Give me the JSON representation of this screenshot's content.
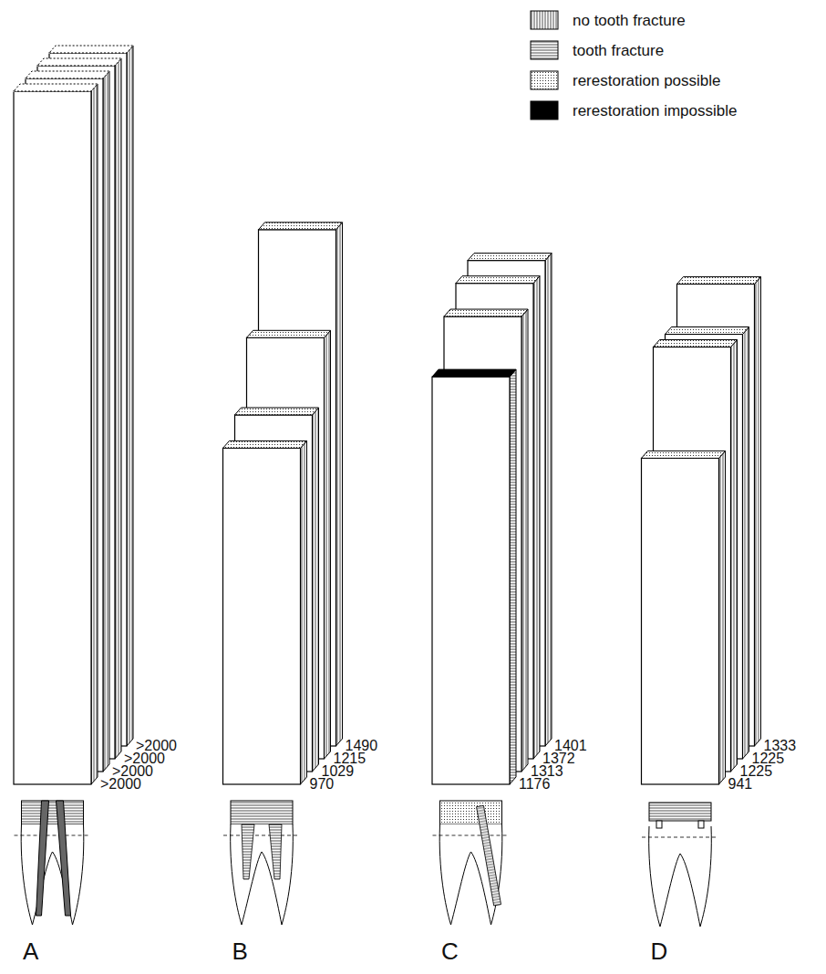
{
  "chart_data": {
    "type": "bar",
    "data_labels": true,
    "categories": [
      "A",
      "B",
      "C",
      "D"
    ],
    "outcome_labels": [
      "no tooth fracture",
      "tooth fracture",
      "rerestoration possible",
      "rerestoration impossible"
    ],
    "series": [
      {
        "values": [
          2000,
          970,
          1176,
          941
        ],
        "value_labels": [
          ">2000",
          "970",
          "1176",
          "941"
        ],
        "fracture": [
          false,
          false,
          true,
          false
        ],
        "rerestoration": [
          null,
          "possible",
          "impossible",
          "possible"
        ]
      },
      {
        "values": [
          2000,
          1029,
          1313,
          1225
        ],
        "value_labels": [
          ">2000",
          "1029",
          "1313",
          "1225"
        ],
        "fracture": [
          false,
          false,
          false,
          false
        ],
        "rerestoration": [
          null,
          "possible",
          "possible",
          "possible"
        ]
      },
      {
        "values": [
          2000,
          1215,
          1372,
          1225
        ],
        "value_labels": [
          ">2000",
          "1215",
          "1372",
          "1225"
        ],
        "fracture": [
          false,
          false,
          false,
          false
        ],
        "rerestoration": [
          null,
          "possible",
          "possible",
          "possible"
        ]
      },
      {
        "values": [
          2000,
          1490,
          1401,
          1333
        ],
        "value_labels": [
          ">2000",
          "1490",
          "1401",
          "1333"
        ],
        "fracture": [
          false,
          false,
          false,
          false
        ],
        "rerestoration": [
          null,
          "possible",
          "possible",
          "possible"
        ]
      }
    ]
  }
}
